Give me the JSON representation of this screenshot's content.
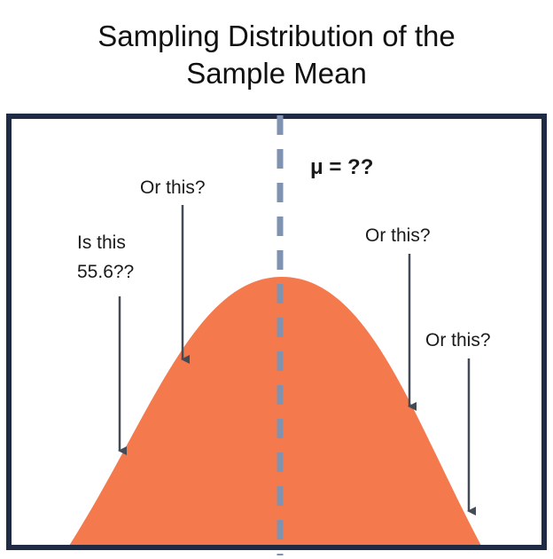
{
  "title": "Sampling Distribution of the\nSample Mean",
  "mean_label": "μ = ??",
  "annotations": [
    {
      "line1": "Is this",
      "line2": "55.6??"
    },
    {
      "line1": "Or this?",
      "line2": ""
    },
    {
      "line1": "Or this?",
      "line2": ""
    },
    {
      "line1": "Or this?",
      "line2": ""
    }
  ],
  "colors": {
    "curve_fill": "#f47a4d",
    "frame": "#1f2a44",
    "mean_line": "#7f92b0",
    "arrow": "#444b57"
  }
}
